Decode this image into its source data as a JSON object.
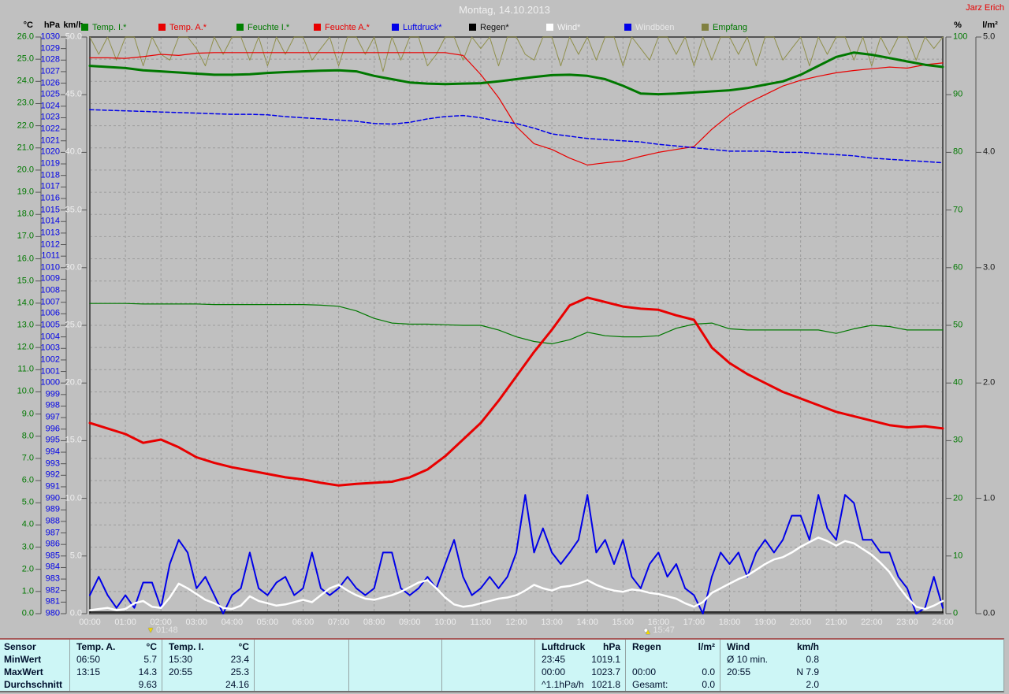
{
  "header": {
    "title": "Montag, 14.10.2013",
    "user": "Jarz Erich"
  },
  "legend": [
    {
      "label": "Temp. I.*",
      "square": "#008000",
      "text_color": "#007800"
    },
    {
      "label": "Temp. A.*",
      "square": "#e80000",
      "text_color": "#e80000"
    },
    {
      "label": "Feuchte I.*",
      "square": "#008000",
      "text_color": "#007800"
    },
    {
      "label": "Feuchte A.*",
      "square": "#e80000",
      "text_color": "#e80000"
    },
    {
      "label": "Luftdruck*",
      "square": "#0000e8",
      "text_color": "#0000e8"
    },
    {
      "label": "Regen*",
      "square": "#000000",
      "text_color": "#101010"
    },
    {
      "label": "Wind*",
      "square": "#ffffff",
      "text_color": "#f4f4f4"
    },
    {
      "label": "Windböen",
      "square": "#0000e8",
      "text_color": "#e8e8e8"
    },
    {
      "label": "Empfang",
      "square": "#808040",
      "text_color": "#007800"
    }
  ],
  "chart_data": {
    "type": "line",
    "title": "Montag, 14.10.2013",
    "x_unit": "hours",
    "x_range": [
      0,
      24
    ],
    "grid": "dashed, vertical per hour, horizontal per 1 °C",
    "axes": {
      "celsius": {
        "header": "°C",
        "color": "#007800",
        "min": 0,
        "max": 26,
        "tick_labels": [
          "26.0",
          "25.0",
          "24.0",
          "23.0",
          "22.0",
          "21.0",
          "20.0",
          "19.0",
          "18.0",
          "17.0",
          "16.0",
          "15.0",
          "14.0",
          "13.0",
          "12.0",
          "11.0",
          "10.0",
          "9.0",
          "8.0",
          "7.0",
          "6.0",
          "5.0",
          "4.0",
          "3.0",
          "2.0",
          "1.0",
          "0.0"
        ]
      },
      "hpa": {
        "header": "hPa",
        "color": "#0000e8",
        "min": 980,
        "max": 1030,
        "tick_labels": [
          "1030",
          "1029",
          "1028",
          "1027",
          "1026",
          "1025",
          "1024",
          "1023",
          "1022",
          "1021",
          "1020",
          "1019",
          "1018",
          "1017",
          "1016",
          "1015",
          "1014",
          "1013",
          "1012",
          "1011",
          "1010",
          "1009",
          "1008",
          "1007",
          "1006",
          "1005",
          "1004",
          "1003",
          "1002",
          "1001",
          "1000",
          "999",
          "998",
          "997",
          "996",
          "995",
          "994",
          "993",
          "992",
          "991",
          "990",
          "989",
          "988",
          "987",
          "986",
          "985",
          "984",
          "983",
          "982",
          "981",
          "980"
        ]
      },
      "kmh": {
        "header": "km/h",
        "color": "#efefef",
        "min": 0,
        "max": 50,
        "tick_labels": [
          "50.0",
          "45.0",
          "40.0",
          "35.0",
          "30.0",
          "25.0",
          "20.0",
          "15.0",
          "10.0",
          "5.0",
          "0.0"
        ]
      },
      "percent": {
        "header": "%",
        "color": "#007800",
        "min": 0,
        "max": 100,
        "tick_labels": [
          "100",
          "90",
          "80",
          "70",
          "60",
          "50",
          "40",
          "30",
          "20",
          "10",
          "0"
        ]
      },
      "lm2": {
        "header": "l/m²",
        "color": "#1c1c1c",
        "min": 0,
        "max": 5,
        "tick_labels": [
          "5.0",
          "4.0",
          "3.0",
          "2.0",
          "1.0",
          "0.0"
        ]
      }
    },
    "x_tick_labels": [
      "00:00",
      "01:00",
      "02:00",
      "03:00",
      "04:00",
      "05:00",
      "06:00",
      "07:00",
      "08:00",
      "09:00",
      "10:00",
      "11:00",
      "12:00",
      "13:00",
      "14:00",
      "15:00",
      "16:00",
      "17:00",
      "18:00",
      "19:00",
      "20:00",
      "21:00",
      "22:00",
      "23:00",
      "24:00"
    ],
    "series": [
      {
        "id": "empfang",
        "name": "Empfang",
        "axis": "percent",
        "color": "#8f8f4b",
        "width": 1,
        "start_h": 0,
        "dt_min": 15,
        "values": [
          100,
          97,
          100,
          96,
          100,
          100,
          95,
          100,
          97,
          96,
          100,
          100,
          98,
          95,
          100,
          97,
          100,
          100,
          96,
          100,
          95,
          100,
          97,
          100,
          100,
          96,
          98,
          100,
          95,
          100,
          100,
          97,
          100,
          94,
          100,
          96,
          100,
          100,
          95,
          97,
          100,
          100,
          96,
          100,
          98,
          100,
          95,
          100,
          100,
          97,
          96,
          100,
          100,
          95,
          100,
          97,
          100,
          96,
          100,
          100,
          95,
          100,
          98,
          96,
          100,
          100,
          97,
          100,
          95,
          100,
          96,
          100,
          100,
          97,
          100,
          95,
          100,
          100,
          96,
          98,
          100,
          95,
          100,
          97,
          100,
          100,
          96,
          100,
          95,
          100,
          97,
          100,
          100,
          96,
          100,
          98,
          100
        ]
      },
      {
        "id": "feuchte-i",
        "name": "Feuchte I.",
        "axis": "percent",
        "color": "#007800",
        "width": 1.2,
        "start_h": 0,
        "dt_min": 30,
        "values": [
          53.8,
          53.8,
          53.8,
          53.7,
          53.7,
          53.7,
          53.7,
          53.6,
          53.6,
          53.6,
          53.6,
          53.6,
          53.6,
          53.5,
          53.3,
          52.5,
          51.2,
          50.4,
          50.2,
          50.2,
          50.1,
          50.0,
          50.0,
          49.2,
          48.0,
          47.2,
          46.8,
          47.5,
          48.8,
          48.2,
          48.0,
          48.0,
          48.2,
          49.5,
          50.2,
          50.4,
          49.4,
          49.2,
          49.2,
          49.2,
          49.2,
          49.2,
          48.6,
          49.4,
          50.0,
          49.8,
          49.2,
          49.2,
          49.2
        ]
      },
      {
        "id": "feuchte-a",
        "name": "Feuchte A.",
        "axis": "percent",
        "color": "#e80000",
        "width": 1.2,
        "start_h": 0,
        "dt_min": 30,
        "values": [
          96.4,
          96.4,
          96.3,
          96.6,
          97.0,
          96.8,
          97.2,
          97.3,
          97.3,
          97.3,
          97.3,
          97.3,
          97.3,
          97.3,
          97.3,
          97.3,
          97.3,
          97.3,
          97.3,
          97.3,
          97.3,
          96.8,
          93.5,
          89.5,
          84.5,
          81.5,
          80.5,
          79.0,
          77.8,
          78.2,
          78.5,
          79.3,
          80.0,
          80.5,
          81.0,
          84.0,
          86.5,
          88.5,
          90.0,
          91.5,
          92.5,
          93.2,
          93.8,
          94.2,
          94.5,
          94.8,
          94.6,
          95.2,
          95.5
        ]
      },
      {
        "id": "luftdruck",
        "name": "Luftdruck",
        "axis": "hpa",
        "color": "#0000e8",
        "width": 1.5,
        "dash": "5,3",
        "start_h": 0,
        "dt_min": 30,
        "values": [
          1023.7,
          1023.65,
          1023.6,
          1023.55,
          1023.5,
          1023.45,
          1023.4,
          1023.35,
          1023.3,
          1023.3,
          1023.25,
          1023.1,
          1023.0,
          1022.9,
          1022.8,
          1022.7,
          1022.5,
          1022.45,
          1022.6,
          1022.9,
          1023.1,
          1023.2,
          1023.0,
          1022.7,
          1022.5,
          1022.1,
          1021.6,
          1021.4,
          1021.2,
          1021.1,
          1021.0,
          1020.9,
          1020.7,
          1020.55,
          1020.4,
          1020.25,
          1020.1,
          1020.1,
          1020.1,
          1020.0,
          1020.0,
          1019.9,
          1019.8,
          1019.7,
          1019.5,
          1019.4,
          1019.3,
          1019.2,
          1019.1
        ]
      },
      {
        "id": "temp-i",
        "name": "Temp. I.",
        "axis": "celsius",
        "color": "#007800",
        "width": 3,
        "start_h": 0,
        "dt_min": 30,
        "values": [
          24.7,
          24.65,
          24.6,
          24.5,
          24.45,
          24.4,
          24.35,
          24.3,
          24.3,
          24.32,
          24.38,
          24.42,
          24.45,
          24.48,
          24.5,
          24.45,
          24.25,
          24.1,
          23.95,
          23.9,
          23.88,
          23.9,
          23.92,
          24.0,
          24.1,
          24.2,
          24.28,
          24.3,
          24.25,
          24.1,
          23.8,
          23.45,
          23.42,
          23.45,
          23.5,
          23.55,
          23.6,
          23.7,
          23.85,
          24.0,
          24.3,
          24.7,
          25.1,
          25.3,
          25.2,
          25.05,
          24.9,
          24.75,
          24.65
        ]
      },
      {
        "id": "temp-a",
        "name": "Temp. A.",
        "axis": "celsius",
        "color": "#e80000",
        "width": 3,
        "start_h": 0,
        "dt_min": 30,
        "values": [
          8.6,
          8.35,
          8.1,
          7.7,
          7.85,
          7.5,
          7.05,
          6.8,
          6.6,
          6.45,
          6.3,
          6.15,
          6.05,
          5.9,
          5.78,
          5.85,
          5.9,
          5.95,
          6.15,
          6.5,
          7.1,
          7.85,
          8.6,
          9.6,
          10.7,
          11.8,
          12.8,
          13.9,
          14.25,
          14.05,
          13.85,
          13.75,
          13.7,
          13.45,
          13.25,
          12.0,
          11.3,
          10.8,
          10.4,
          10.0,
          9.7,
          9.4,
          9.1,
          8.9,
          8.7,
          8.5,
          8.4,
          8.45,
          8.35
        ]
      },
      {
        "id": "regen",
        "name": "Regen",
        "axis": "lm2",
        "color": "#000000",
        "width": 1.5,
        "y_offset": -2,
        "start_h": 0,
        "dt_min": 1440,
        "values": [
          0,
          0
        ]
      },
      {
        "id": "windboeen",
        "name": "Windböen",
        "axis": "kmh",
        "color": "#0000e8",
        "width": 2,
        "start_h": 0,
        "dt_min": 15,
        "values": [
          1.6,
          3.2,
          1.6,
          0.5,
          1.6,
          0.5,
          2.7,
          2.7,
          0.5,
          4.3,
          6.4,
          5.3,
          2.2,
          3.2,
          1.6,
          0.0,
          1.6,
          2.2,
          5.3,
          2.2,
          1.6,
          2.7,
          3.2,
          1.6,
          2.2,
          5.3,
          2.2,
          1.6,
          2.2,
          3.2,
          2.2,
          1.6,
          2.2,
          5.3,
          5.3,
          2.2,
          1.6,
          2.2,
          3.2,
          2.2,
          4.3,
          6.4,
          3.2,
          1.6,
          2.2,
          3.2,
          2.2,
          3.2,
          5.3,
          10.3,
          5.3,
          7.4,
          5.3,
          4.3,
          5.3,
          6.4,
          10.3,
          5.3,
          6.4,
          4.3,
          6.4,
          3.2,
          2.2,
          4.3,
          5.3,
          3.2,
          4.3,
          2.2,
          1.6,
          0.0,
          3.2,
          5.3,
          4.3,
          5.3,
          3.2,
          5.3,
          6.4,
          5.3,
          6.4,
          8.5,
          8.5,
          6.4,
          10.3,
          7.4,
          6.4,
          10.3,
          9.6,
          6.4,
          6.4,
          5.3,
          5.3,
          3.2,
          2.2,
          0.0,
          0.5,
          3.2,
          0.5
        ]
      },
      {
        "id": "wind",
        "name": "Wind",
        "axis": "kmh",
        "color": "#ffffff",
        "width": 2.5,
        "start_h": 0,
        "dt_min": 15,
        "values": [
          0.3,
          0.4,
          0.5,
          0.3,
          0.4,
          0.9,
          1.1,
          0.6,
          0.5,
          1.4,
          2.6,
          2.2,
          1.7,
          1.2,
          0.9,
          0.5,
          0.4,
          0.7,
          1.5,
          1.1,
          0.9,
          0.7,
          0.8,
          1.0,
          1.2,
          1.0,
          1.6,
          2.2,
          2.5,
          2.0,
          1.6,
          1.3,
          1.2,
          1.4,
          1.6,
          1.9,
          2.3,
          2.7,
          2.9,
          2.2,
          1.4,
          0.8,
          0.6,
          0.7,
          0.9,
          1.1,
          1.3,
          1.4,
          1.6,
          2.0,
          2.5,
          2.2,
          2.0,
          2.3,
          2.4,
          2.6,
          2.9,
          2.5,
          2.2,
          2.0,
          1.9,
          2.1,
          2.0,
          1.8,
          1.7,
          1.5,
          1.3,
          0.9,
          0.6,
          1.0,
          1.8,
          2.2,
          2.6,
          3.0,
          3.3,
          3.8,
          4.3,
          4.7,
          4.9,
          5.3,
          5.8,
          6.2,
          6.6,
          6.3,
          5.9,
          6.3,
          6.1,
          5.6,
          5.1,
          4.4,
          3.6,
          2.4,
          1.4,
          0.6,
          0.4,
          0.7,
          1.1
        ]
      }
    ],
    "markers": [
      {
        "time": "01:48",
        "hours": 1.8,
        "icon": "down-arrow-icon"
      },
      {
        "time": "15:47",
        "hours": 15.78,
        "icon": "moon-alert-icon"
      }
    ]
  },
  "summary_table": {
    "row_labels": [
      "Sensor",
      "MinWert",
      "MaxWert",
      "Durchschnitt"
    ],
    "columns": [
      {
        "title": "Temp. A.",
        "unit": "°C",
        "cells": [
          [
            "06:50",
            "5.7"
          ],
          [
            "13:15",
            "14.3"
          ],
          [
            "",
            "9.63"
          ]
        ]
      },
      {
        "title": "Temp. I.",
        "unit": "°C",
        "cells": [
          [
            "15:30",
            "23.4"
          ],
          [
            "20:55",
            "25.3"
          ],
          [
            "",
            "24.16"
          ]
        ]
      },
      {
        "title": "",
        "unit": "",
        "cells": [
          [
            "",
            ""
          ],
          [
            "",
            ""
          ],
          [
            "",
            ""
          ]
        ]
      },
      {
        "title": "",
        "unit": "",
        "cells": [
          [
            "",
            ""
          ],
          [
            "",
            ""
          ],
          [
            "",
            ""
          ]
        ]
      },
      {
        "title": "",
        "unit": "",
        "cells": [
          [
            "",
            ""
          ],
          [
            "",
            ""
          ],
          [
            "",
            ""
          ]
        ]
      },
      {
        "title": "Luftdruck",
        "unit": "hPa",
        "cells": [
          [
            "23:45",
            "1019.1"
          ],
          [
            "00:00",
            "1023.7"
          ],
          [
            "^1.1hPa/h",
            "1021.8"
          ]
        ]
      },
      {
        "title": "Regen",
        "unit": "l/m²",
        "cells": [
          [
            "",
            ""
          ],
          [
            "00:00",
            "0.0"
          ],
          [
            "Gesamt:",
            "0.0"
          ]
        ]
      },
      {
        "title": "Wind",
        "unit": "km/h",
        "cells": [
          [
            "Ø 10 min.",
            "0.8"
          ],
          [
            "20:55",
            "N 7.9"
          ],
          [
            "",
            "2.0"
          ]
        ]
      }
    ]
  }
}
